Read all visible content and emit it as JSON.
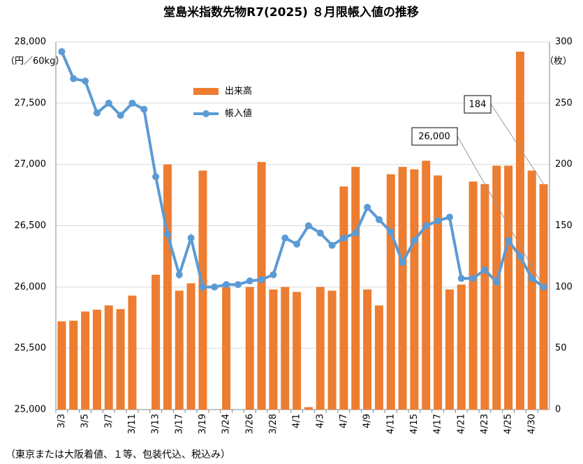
{
  "chart_data": {
    "type": "bar-line",
    "title": "堂島米指数先物R7(2025) ８月限帳入値の推移",
    "y_label": "（円／60kg）",
    "y2_label": "（枚）",
    "footnote": "（東京または大阪着値、１等、包装代込、税込み）",
    "categories": [
      "3/3",
      null,
      "3/5",
      null,
      "3/7",
      null,
      "3/11",
      null,
      "3/13",
      null,
      "3/17",
      null,
      "3/19",
      null,
      "3/24",
      null,
      "3/26",
      null,
      "3/28",
      null,
      "4/1",
      null,
      "4/3",
      null,
      "4/7",
      null,
      "4/9",
      null,
      "4/11",
      null,
      "4/15",
      null,
      "4/17",
      null,
      "4/21",
      null,
      "4/23",
      null,
      "4/25",
      null,
      "4/30",
      null
    ],
    "series": [
      {
        "name": "出来高",
        "color": "#ed7d31",
        "axis": "y2",
        "values": [
          72,
          72.5,
          80,
          81.5,
          85,
          82,
          93,
          null,
          110,
          200,
          97,
          103,
          195,
          null,
          100,
          null,
          100,
          202,
          98,
          100,
          96,
          2,
          100,
          97,
          182,
          198,
          98,
          85,
          192,
          198,
          196,
          203,
          191,
          98,
          102,
          186,
          184,
          199,
          199,
          292,
          195,
          184
        ]
      },
      {
        "name": "帳入値",
        "color": "#5b9bd5",
        "values": [
          27920,
          27700,
          27680,
          27420,
          27500,
          27400,
          27500,
          27450,
          26900,
          26430,
          26100,
          26400,
          26000,
          26000,
          26020,
          26020,
          26050,
          26060,
          26100,
          26400,
          26350,
          26500,
          26440,
          26340,
          26400,
          26440,
          26650,
          26550,
          26450,
          26200,
          26380,
          26500,
          26540,
          26570,
          26070,
          26070,
          26140,
          26040,
          26380,
          26250,
          26070,
          26000
        ]
      }
    ],
    "ylim": [
      25000,
      28000
    ],
    "yticks": [
      {
        "value": 25000,
        "label": "25,000"
      },
      {
        "value": 25500,
        "label": "25,500"
      },
      {
        "value": 26000,
        "label": "26,000"
      },
      {
        "value": 26500,
        "label": "26,500"
      },
      {
        "value": 27000,
        "label": "27,000"
      },
      {
        "value": 27500,
        "label": "27,500"
      },
      {
        "value": 28000,
        "label": "28,000"
      }
    ],
    "y2lim": [
      0,
      300
    ],
    "y2ticks": [
      0,
      50,
      100,
      150,
      200,
      250,
      300
    ],
    "grid": true,
    "annotations": [
      "184",
      "26,000"
    ]
  }
}
